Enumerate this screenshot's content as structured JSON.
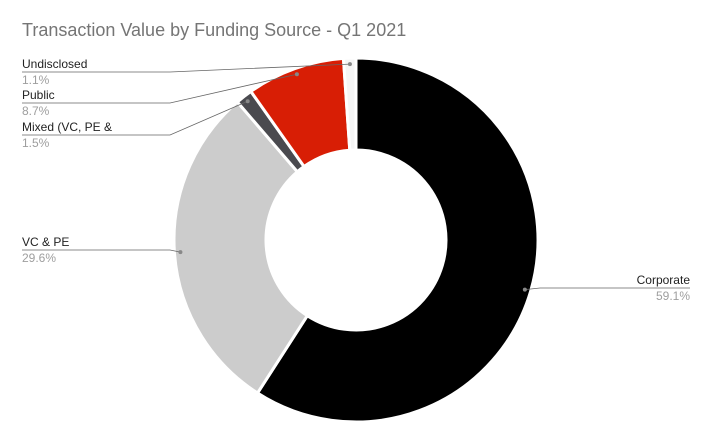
{
  "chart_data": {
    "type": "pie",
    "donut": true,
    "title": "Transaction Value by Funding Source - Q1 2021",
    "slices": [
      {
        "label": "Corporate",
        "value": 59.1,
        "pct_label": "59.1%",
        "color": "#000000"
      },
      {
        "label": "VC & PE",
        "value": 29.6,
        "pct_label": "29.6%",
        "color": "#cccccc"
      },
      {
        "label": "Mixed (VC, PE &",
        "value": 1.5,
        "pct_label": "1.5%",
        "color": "#4a4a4f"
      },
      {
        "label": "Public",
        "value": 8.7,
        "pct_label": "8.7%",
        "color": "#d81e05"
      },
      {
        "label": "Undisclosed",
        "value": 1.1,
        "pct_label": "1.1%",
        "color": "#f5f5f5"
      }
    ],
    "legend": "none"
  }
}
